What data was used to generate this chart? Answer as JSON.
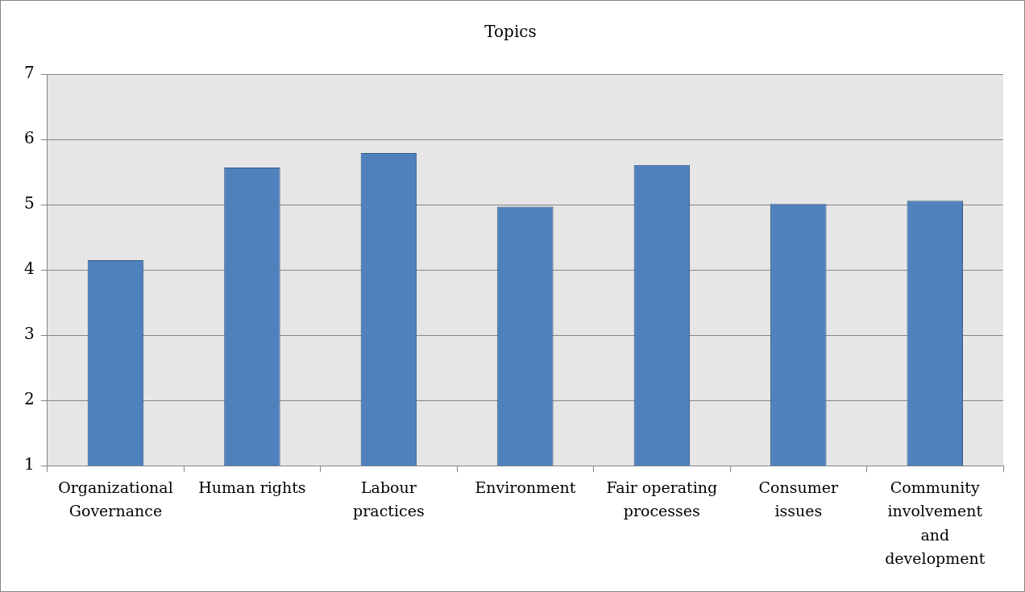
{
  "chart_data": {
    "type": "bar",
    "title": "Topics",
    "categories": [
      "Organizational Governance",
      "Human rights",
      "Labour practices",
      "Environment",
      "Fair operating processes",
      "Consumer issues",
      "Community involvement and development"
    ],
    "values": [
      4.15,
      5.57,
      5.79,
      4.97,
      5.61,
      5.01,
      5.06
    ],
    "color": "#4f81bd",
    "ylim": [
      1,
      7
    ],
    "yticks": [
      1,
      2,
      3,
      4,
      5,
      6,
      7
    ],
    "grid": "y"
  }
}
